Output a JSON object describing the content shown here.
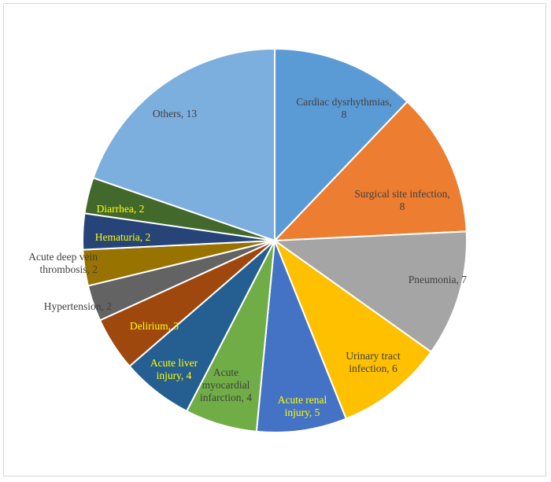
{
  "chart_data": {
    "type": "pie",
    "title": "",
    "start_angle_deg": 0,
    "direction": "clockwise",
    "slices": [
      {
        "label": "Cardiac dysrhythmias",
        "value": 8,
        "color": "#5B9BD5",
        "label_lines": [
          "Cardiac dysrhythmias,",
          "8"
        ],
        "label_color": "#404040"
      },
      {
        "label": "Surgical site infection",
        "value": 8,
        "color": "#ED7D31",
        "label_lines": [
          "Surgical site infection,",
          "8"
        ],
        "label_color": "#404040"
      },
      {
        "label": "Pneumonia",
        "value": 7,
        "color": "#A5A5A5",
        "label_lines": [
          "Pneumonia, 7"
        ],
        "label_color": "#404040"
      },
      {
        "label": "Urinary tract infection",
        "value": 6,
        "color": "#FFC000",
        "label_lines": [
          "Urinary tract",
          "infection, 6"
        ],
        "label_color": "#404040"
      },
      {
        "label": "Acute renal injury",
        "value": 5,
        "color": "#4472C4",
        "label_lines": [
          "Acute renal",
          "injury, 5"
        ],
        "label_color": "#FFFF00"
      },
      {
        "label": "Acute myocardial infarction",
        "value": 4,
        "color": "#70AD47",
        "label_lines": [
          "Acute",
          "myocardial",
          "infarction, 4"
        ],
        "label_color": "#404040"
      },
      {
        "label": "Acute liver injury",
        "value": 4,
        "color": "#255E91",
        "label_lines": [
          "Acute liver",
          "injury, 4"
        ],
        "label_color": "#FFFF00"
      },
      {
        "label": "Delirium",
        "value": 3,
        "color": "#9E480E",
        "label_lines": [
          "Delirium, 3"
        ],
        "label_color": "#FFFF00"
      },
      {
        "label": "Hypertension",
        "value": 2,
        "color": "#636363",
        "label_lines": [
          "Hypertension, 2"
        ],
        "label_color": "#404040"
      },
      {
        "label": "Acute deep vein thrombosis",
        "value": 2,
        "color": "#997300",
        "label_lines": [
          "Acute deep vein",
          "thrombosis, 2"
        ],
        "label_color": "#404040"
      },
      {
        "label": "Hematuria",
        "value": 2,
        "color": "#264478",
        "label_lines": [
          "Hematuria, 2"
        ],
        "label_color": "#FFFF00"
      },
      {
        "label": "Diarrhea",
        "value": 2,
        "color": "#43682B",
        "label_lines": [
          "Diarrhea, 2"
        ],
        "label_color": "#FFFF00"
      },
      {
        "label": "Others",
        "value": 13,
        "color": "#7CAFDD",
        "label_lines": [
          "Others, 13"
        ],
        "label_color": "#404040"
      }
    ]
  }
}
